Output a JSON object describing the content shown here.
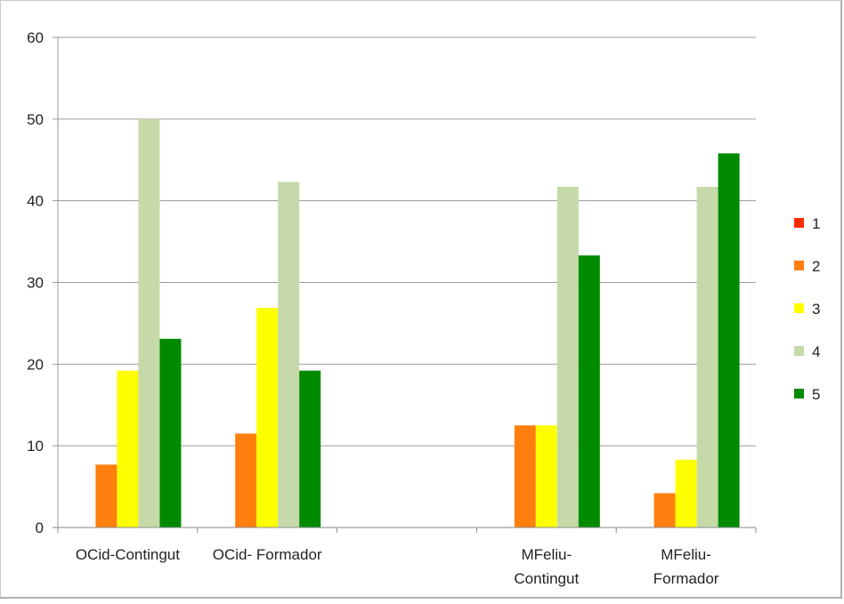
{
  "chart_data": {
    "type": "bar",
    "categories": [
      [
        "OCid-Contingut"
      ],
      [
        "OCid- Formador"
      ],
      [
        ""
      ],
      [
        "MFeliu-",
        "Contingut"
      ],
      [
        "MFeliu-",
        "Formador"
      ]
    ],
    "series": [
      {
        "name": "1",
        "color": "#ff2a00",
        "values": [
          0,
          0,
          null,
          0,
          0
        ]
      },
      {
        "name": "2",
        "color": "#ff7f0e",
        "values": [
          7.7,
          11.5,
          null,
          12.5,
          4.2
        ]
      },
      {
        "name": "3",
        "color": "#ffff00",
        "values": [
          19.2,
          26.9,
          null,
          12.5,
          8.3
        ]
      },
      {
        "name": "4",
        "color": "#c6d9a8",
        "values": [
          50,
          42.3,
          null,
          41.7,
          41.7
        ]
      },
      {
        "name": "5",
        "color": "#008a00",
        "values": [
          23.1,
          19.2,
          null,
          33.3,
          45.8
        ]
      }
    ],
    "ylim": [
      0,
      60
    ],
    "yticks": [
      "0",
      "10",
      "20",
      "30",
      "40",
      "50",
      "60"
    ],
    "grid": true,
    "legend": "right"
  }
}
